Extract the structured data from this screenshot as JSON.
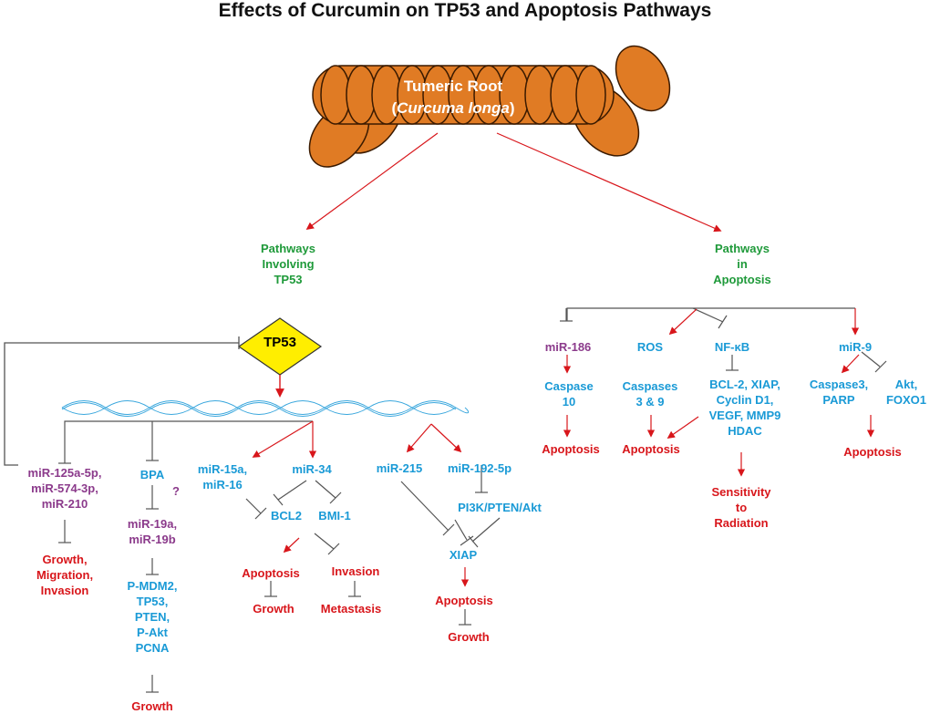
{
  "title": "Effects of Curcumin on TP53 and Apoptosis Pathways",
  "root": {
    "line1": "Tumeric Root",
    "line2_open": "(",
    "line2_italic": "Curcuma longa",
    "line2_close": ")"
  },
  "colors": {
    "root_fill": "#e07b24",
    "arrow_red": "#d8161b",
    "inhibit_gray": "#555555",
    "tp53_fill": "#ffee00",
    "blue": "#1a9ad6",
    "purple": "#8b3a8b",
    "green": "#1f9a3a"
  },
  "branches": {
    "tp53": {
      "title": [
        "Pathways",
        "Involving",
        "TP53"
      ]
    },
    "apoptosis": {
      "title": [
        "Pathways",
        "in",
        "Apoptosis"
      ]
    }
  },
  "tp53_node": "TP53",
  "left": {
    "mir125": [
      "miR-125a-5p,",
      "miR-574-3p,",
      "miR-210"
    ],
    "mir125_effect": [
      "Growth,",
      "Migration,",
      "Invasion"
    ],
    "bpa": "BPA",
    "question": "?",
    "mir19": [
      "miR-19a,",
      "miR-19b"
    ],
    "pmdm2": [
      "P-MDM2,",
      "TP53,",
      "PTEN,",
      "P-Akt",
      "PCNA"
    ],
    "growth1": "Growth",
    "mir15": [
      "miR-15a,",
      "miR-16"
    ],
    "mir34": "miR-34",
    "bcl2": "BCL2",
    "bmi1": "BMI-1",
    "apoptosis1": "Apoptosis",
    "growth2": "Growth",
    "invasion": "Invasion",
    "metastasis": "Metastasis",
    "mir215": "miR-215",
    "mir192": "miR-192-5p",
    "pi3k": "PI3K/PTEN/Akt",
    "xiap": "XIAP",
    "apoptosis2": "Apoptosis",
    "growth3": "Growth"
  },
  "right": {
    "mir186": "miR-186",
    "caspase10": [
      "Caspase",
      "10"
    ],
    "apoptosis3": "Apoptosis",
    "ros": "ROS",
    "caspases39": [
      "Caspases",
      "3 & 9"
    ],
    "apoptosis4": "Apoptosis",
    "nfkb": "NF-κB",
    "bcl2_list": [
      "BCL-2, XIAP,",
      "Cyclin D1,",
      "VEGF, MMP9",
      "HDAC"
    ],
    "sensitivity": [
      "Sensitivity",
      "to",
      "Radiation"
    ],
    "mir9": "miR-9",
    "caspase3": [
      "Caspase3,",
      "PARP"
    ],
    "akt": [
      "Akt,",
      "FOXO1"
    ],
    "apoptosis5": "Apoptosis"
  }
}
